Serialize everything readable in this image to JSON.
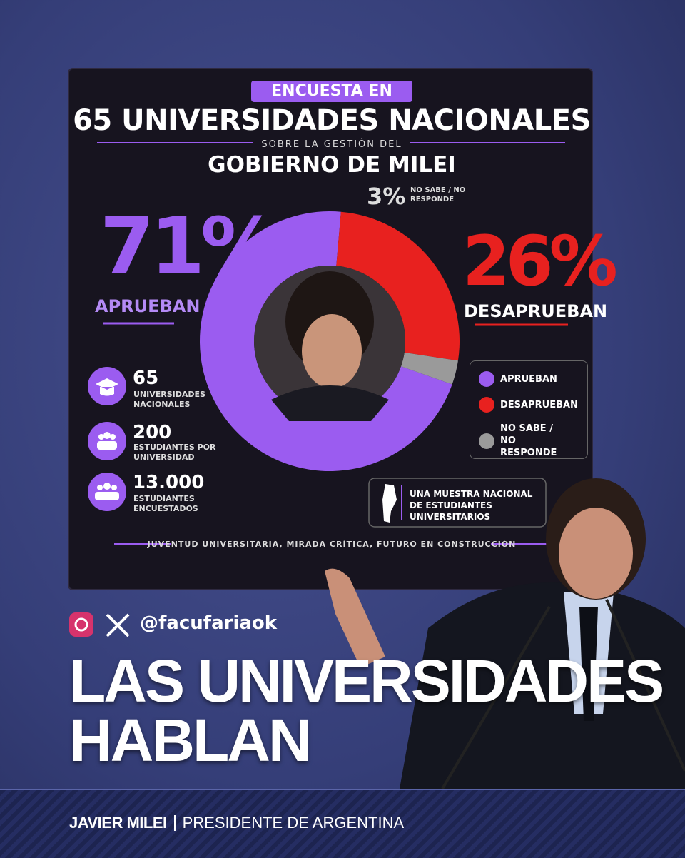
{
  "chart_data": {
    "type": "donut",
    "pill": "ENCUESTA EN",
    "title": "65 UNIVERSIDADES NACIONALES",
    "subtitle": "SOBRE LA GESTIÓN DEL",
    "subtitle2": "GOBIERNO DE MILEI",
    "categories": [
      "APRUEBAN",
      "DESAPRUEBAN",
      "NO SABE / NO RESPONDE"
    ],
    "values": [
      71,
      26,
      3
    ],
    "value_labels": [
      "71%",
      "26%",
      "3%"
    ],
    "colors": [
      "#9b5cf0",
      "#e8211f",
      "#9a9a9a"
    ],
    "legend": "right"
  },
  "stats": [
    {
      "number": "65",
      "label": "UNIVERSIDADES NACIONALES"
    },
    {
      "number": "200",
      "label": "ESTUDIANTES POR UNIVERSIDAD"
    },
    {
      "number": "13.000",
      "label": "ESTUDIANTES ENCUESTADOS"
    }
  ],
  "sample_note": "UNA MUESTRA NACIONAL DE ESTUDIANTES UNIVERSITARIOS",
  "footer_slogan": "JUVENTUD UNIVERSITARIA, MIRADA CRÍTICA, FUTURO EN CONSTRUCCIÓN",
  "handle": "@facufariaok",
  "headline": [
    "LAS UNIVERSIDADES",
    "HABLAN"
  ],
  "caption": {
    "name": "JAVIER MILEI",
    "role": "PRESIDENTE DE ARGENTINA"
  }
}
